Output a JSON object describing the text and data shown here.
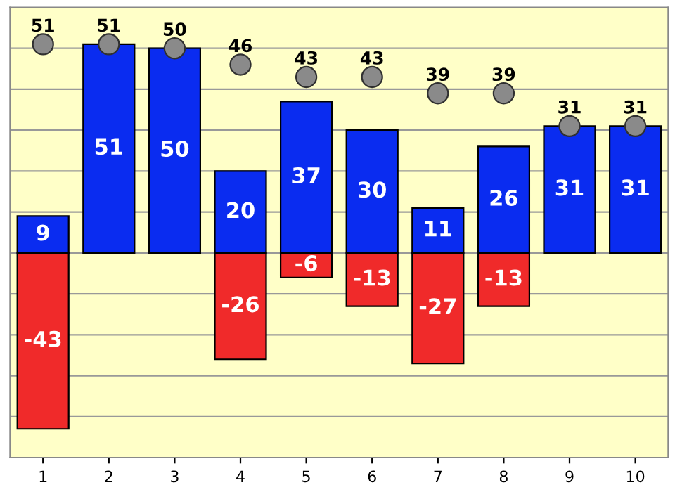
{
  "chart_data": {
    "type": "bar",
    "stacked": true,
    "data_labels": true,
    "grid": "y",
    "legend": false,
    "tick_labels": "x",
    "categories": [
      "1",
      "2",
      "3",
      "4",
      "5",
      "6",
      "7",
      "8",
      "9",
      "10"
    ],
    "ylim": [
      -50,
      60
    ],
    "yticks": [
      {
        "value": -50,
        "label": null
      },
      {
        "value": -40,
        "label": null
      },
      {
        "value": -30,
        "label": null
      },
      {
        "value": -20,
        "label": null
      },
      {
        "value": -10,
        "label": null
      },
      {
        "value": 0,
        "label": null
      },
      {
        "value": 10,
        "label": null
      },
      {
        "value": 20,
        "label": null
      },
      {
        "value": 30,
        "label": null
      },
      {
        "value": 40,
        "label": null
      },
      {
        "value": 50,
        "label": null
      },
      {
        "value": 60,
        "label": null
      }
    ],
    "series": [
      {
        "color": "#0a2cf0",
        "values": [
          9,
          51,
          50,
          20,
          37,
          30,
          11,
          26,
          31,
          31
        ]
      },
      {
        "color": "#f02a2a",
        "values": [
          -43,
          null,
          null,
          -26,
          -6,
          -13,
          -27,
          -13,
          null,
          null
        ]
      },
      {
        "type": "scatter",
        "marker": "circle",
        "color": "#8a8a8a",
        "values": [
          51,
          51,
          50,
          46,
          43,
          43,
          39,
          39,
          31,
          31
        ]
      }
    ]
  }
}
